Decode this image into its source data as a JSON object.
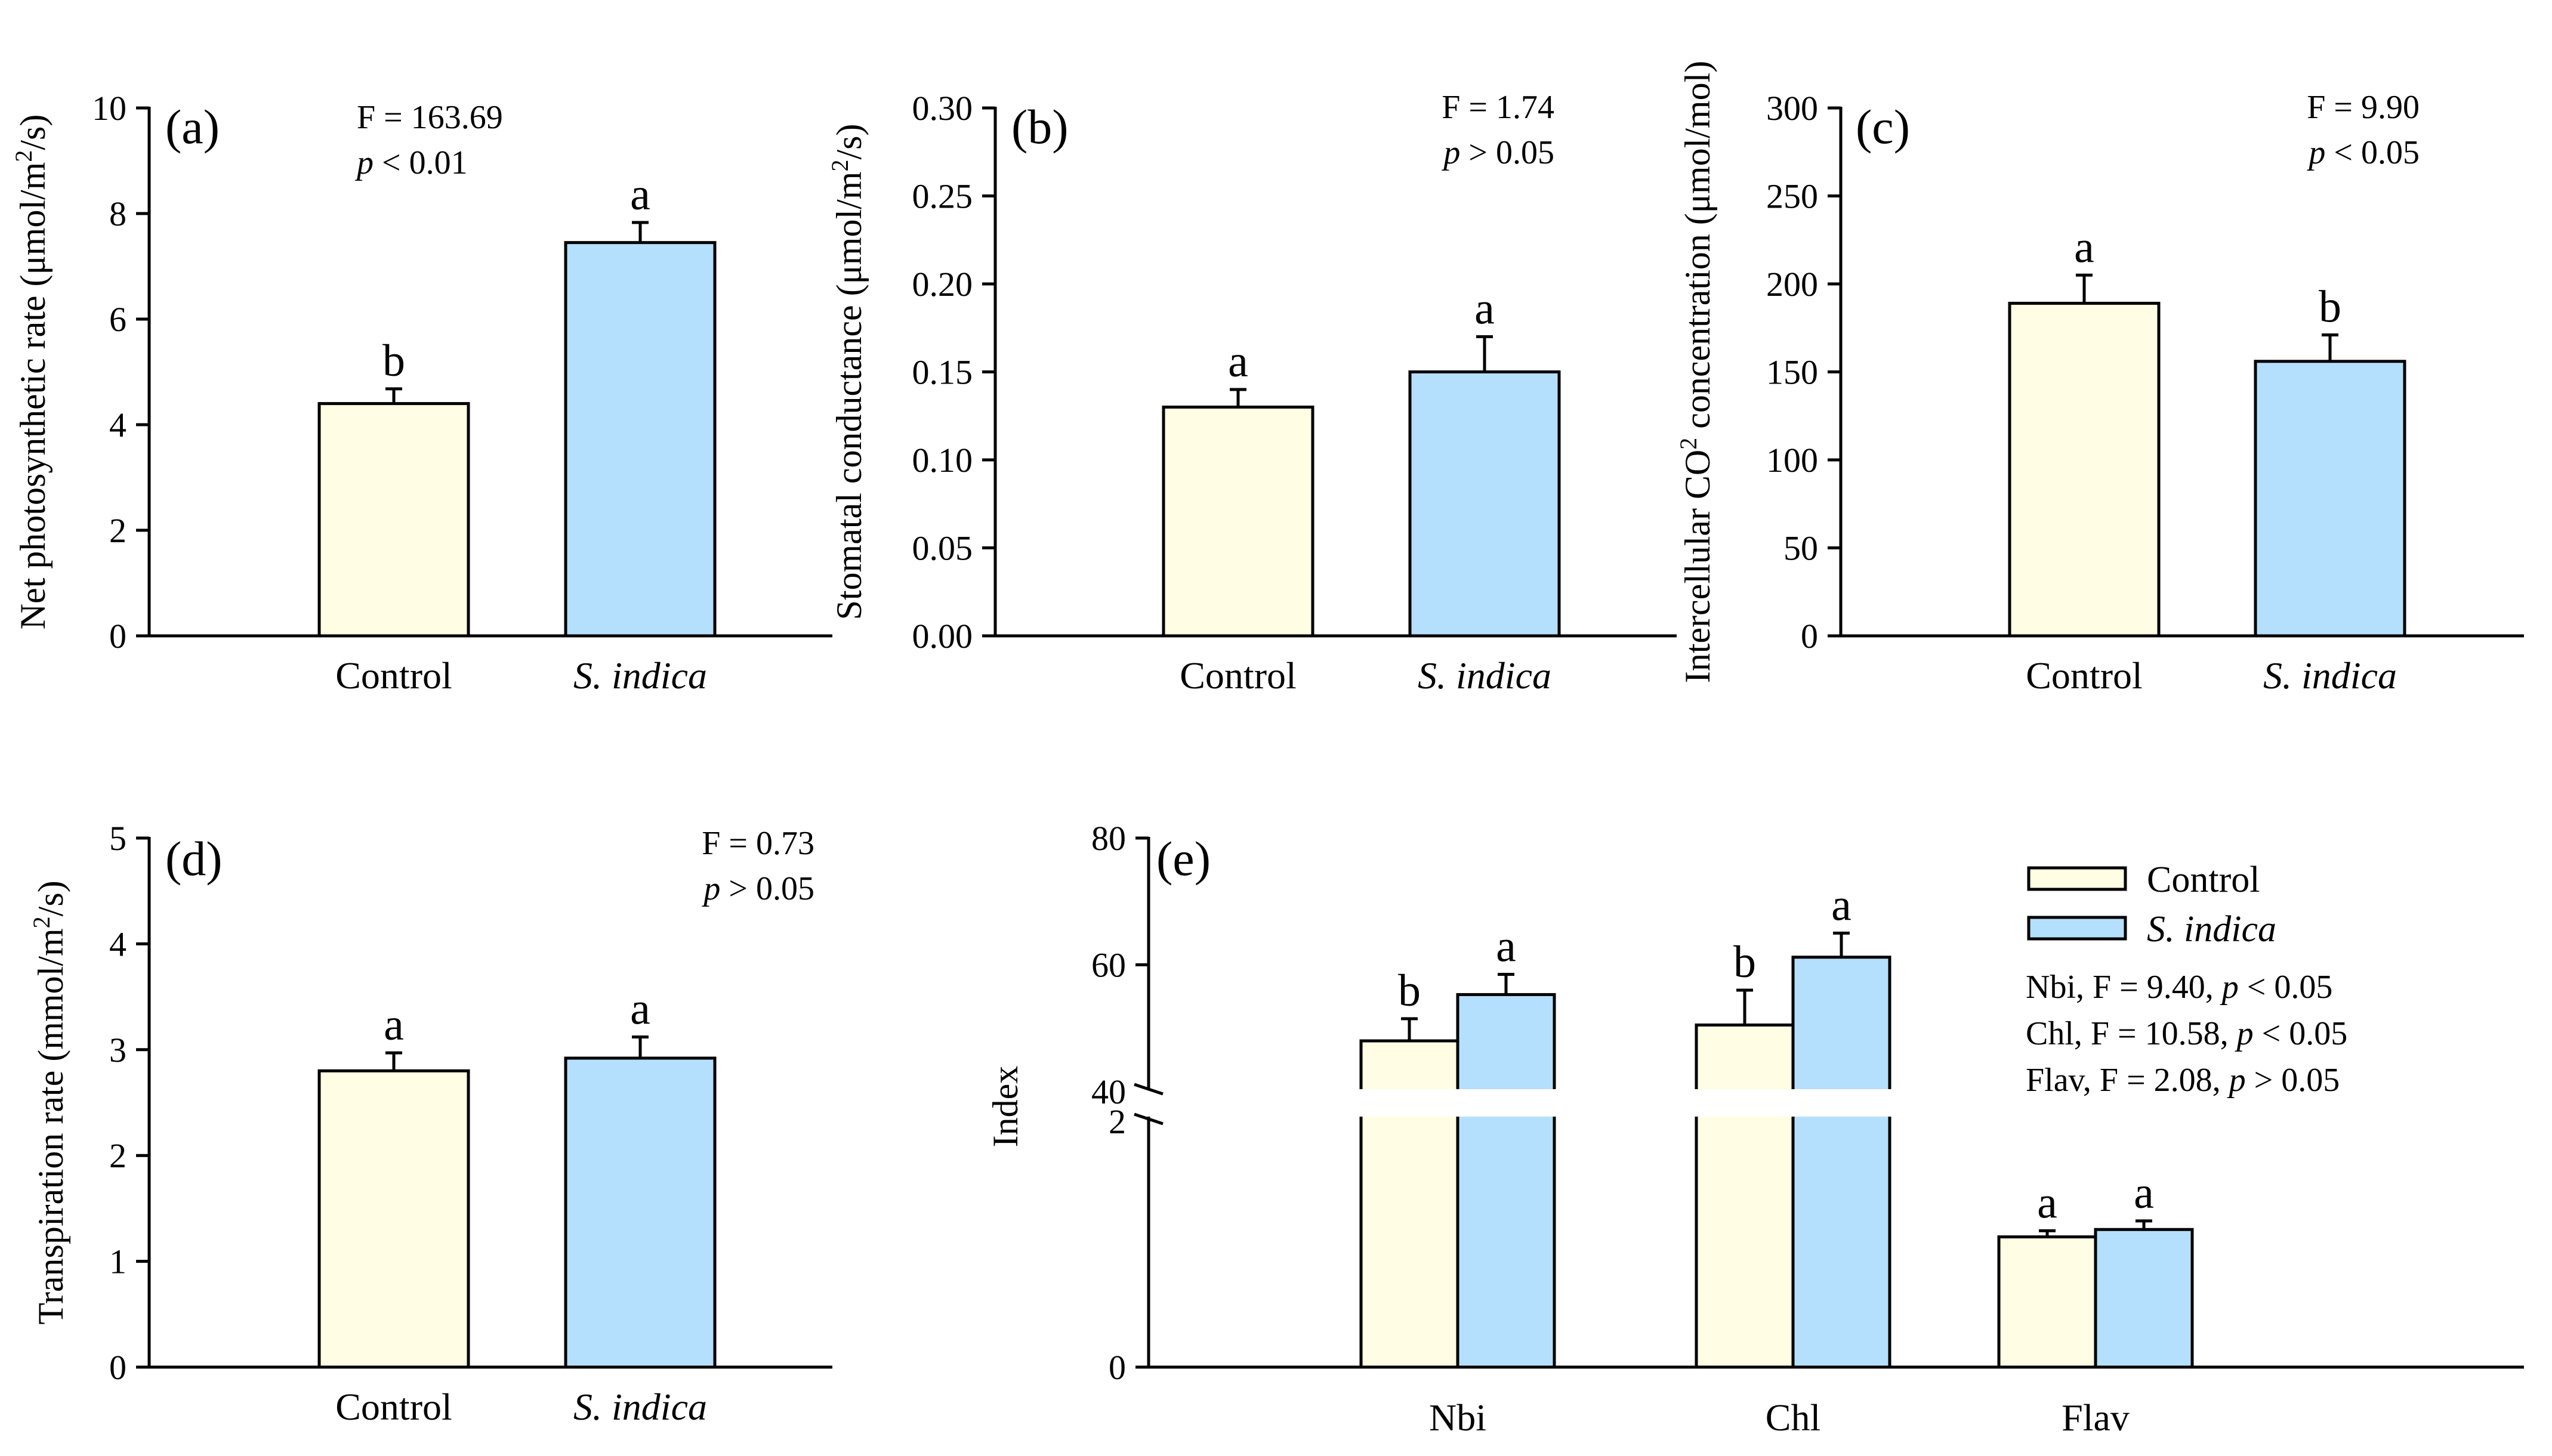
{
  "colors": {
    "control": "#fffde3",
    "sindica": "#b5e0fd",
    "axis": "#000000"
  },
  "chart_data": [
    {
      "id": "a",
      "panel_label": "(a)",
      "type": "bar",
      "ylabel": "Net photosynthetic rate (μmol/m²/s)",
      "ylabel_parts": [
        "Net photosynthetic rate (μmol/m",
        "2",
        "/s)"
      ],
      "ylim": [
        0,
        10
      ],
      "yticks": [
        0,
        2,
        4,
        6,
        8,
        10
      ],
      "ytick_labels": [
        "0",
        "2",
        "4",
        "6",
        "8",
        "10"
      ],
      "categories": [
        "Control",
        "S. indica"
      ],
      "values": [
        4.4,
        7.45
      ],
      "errors": [
        0.28,
        0.38
      ],
      "letters": [
        "b",
        "a"
      ],
      "stats": {
        "f": "F = 163.69",
        "p_symbol": "p",
        "p_rest": " < 0.01"
      }
    },
    {
      "id": "b",
      "panel_label": "(b)",
      "type": "bar",
      "ylabel": "Stomatal conductance (μmol/m²/s)",
      "ylabel_parts": [
        "Stomatal conductance (μmol/m",
        "2",
        "/s)"
      ],
      "ylim": [
        0,
        0.3
      ],
      "yticks": [
        0,
        0.05,
        0.1,
        0.15,
        0.2,
        0.25,
        0.3
      ],
      "ytick_labels": [
        "0.00",
        "0.05",
        "0.10",
        "0.15",
        "0.20",
        "0.25",
        "0.30"
      ],
      "categories": [
        "Control",
        "S. indica"
      ],
      "values": [
        0.13,
        0.15
      ],
      "errors": [
        0.01,
        0.02
      ],
      "letters": [
        "a",
        "a"
      ],
      "stats": {
        "f": "F = 1.74",
        "p_symbol": "p",
        "p_rest": " > 0.05"
      }
    },
    {
      "id": "c",
      "panel_label": "(c)",
      "type": "bar",
      "ylabel": "Intercellular CO₂ concentration (μmol/mol)",
      "ylabel_parts": [
        "Intercellular CO",
        "2",
        " concentration (μmol/mol)"
      ],
      "ylim": [
        0,
        300
      ],
      "yticks": [
        0,
        50,
        100,
        150,
        200,
        250,
        300
      ],
      "ytick_labels": [
        "0",
        "50",
        "100",
        "150",
        "200",
        "250",
        "300"
      ],
      "categories": [
        "Control",
        "S. indica"
      ],
      "values": [
        189,
        156
      ],
      "errors": [
        16,
        15
      ],
      "letters": [
        "a",
        "b"
      ],
      "stats": {
        "f": "F = 9.90",
        "p_symbol": "p",
        "p_rest": " < 0.05"
      }
    },
    {
      "id": "d",
      "panel_label": "(d)",
      "type": "bar",
      "ylabel": "Transpiration rate (mmol/m²/s)",
      "ylabel_parts": [
        "Transpiration rate (mmol/m",
        "2",
        "/s)"
      ],
      "ylim": [
        0,
        5
      ],
      "yticks": [
        0,
        1,
        2,
        3,
        4,
        5
      ],
      "ytick_labels": [
        "0",
        "1",
        "2",
        "3",
        "4",
        "5"
      ],
      "categories": [
        "Control",
        "S. indica"
      ],
      "values": [
        2.8,
        2.92
      ],
      "errors": [
        0.17,
        0.2
      ],
      "letters": [
        "a",
        "a"
      ],
      "stats": {
        "f": "F = 0.73",
        "p_symbol": "p",
        "p_rest": " > 0.05"
      }
    },
    {
      "id": "e",
      "panel_label": "(e)",
      "type": "bar",
      "ylabel": "Index",
      "ylabel_parts": [
        "Index",
        "",
        ""
      ],
      "broken_axis": true,
      "lower_ylim": [
        0,
        2
      ],
      "upper_ylim": [
        40,
        80
      ],
      "ytick_labels": [
        "0",
        "2",
        "40",
        "60",
        "80"
      ],
      "categories": [
        "Nbi",
        "Chl",
        "Flav"
      ],
      "series": [
        {
          "name": "Control",
          "values": [
            48,
            50.5,
            1.06
          ],
          "errors": [
            3.5,
            5.5,
            0.05
          ],
          "letters": [
            "b",
            "b",
            "a"
          ]
        },
        {
          "name": "S. indica",
          "values": [
            55.3,
            61.2,
            1.12
          ],
          "errors": [
            3.2,
            3.8,
            0.07
          ],
          "letters": [
            "a",
            "a",
            "a"
          ]
        }
      ],
      "legend": [
        "Control",
        "S. indica"
      ],
      "stats_lines": [
        {
          "pre": "Nbi, F = 9.40, ",
          "p_symbol": "p",
          "post": " < 0.05"
        },
        {
          "pre": "Chl, F = 10.58, ",
          "p_symbol": "p",
          "post": " < 0.05"
        },
        {
          "pre": "Flav, F = 2.08, ",
          "p_symbol": "p",
          "post": " > 0.05"
        }
      ]
    }
  ]
}
